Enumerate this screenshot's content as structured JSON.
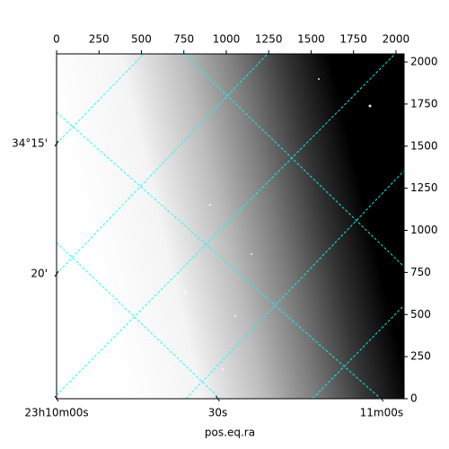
{
  "chart_data": {
    "type": "image",
    "x_label": "pos.eq.ra",
    "xlim": [
      0,
      2048
    ],
    "ylim": [
      0,
      2048
    ],
    "xticks": [
      0,
      250,
      500,
      750,
      1000,
      1250,
      1500,
      1750,
      2000
    ],
    "yticks": [
      0,
      250,
      500,
      750,
      1000,
      1250,
      1500,
      1750,
      2000
    ],
    "wcs_xticks": [
      {
        "value": 0,
        "label": "23h10m00s"
      },
      {
        "value": 950,
        "label": "30s"
      },
      {
        "value": 1915,
        "label": "11m00s"
      }
    ],
    "wcs_yticks": [
      {
        "value": 1515,
        "label": "34°15'"
      },
      {
        "value": 741,
        "label": "20'"
      }
    ],
    "grid_color": "#00ffff"
  }
}
